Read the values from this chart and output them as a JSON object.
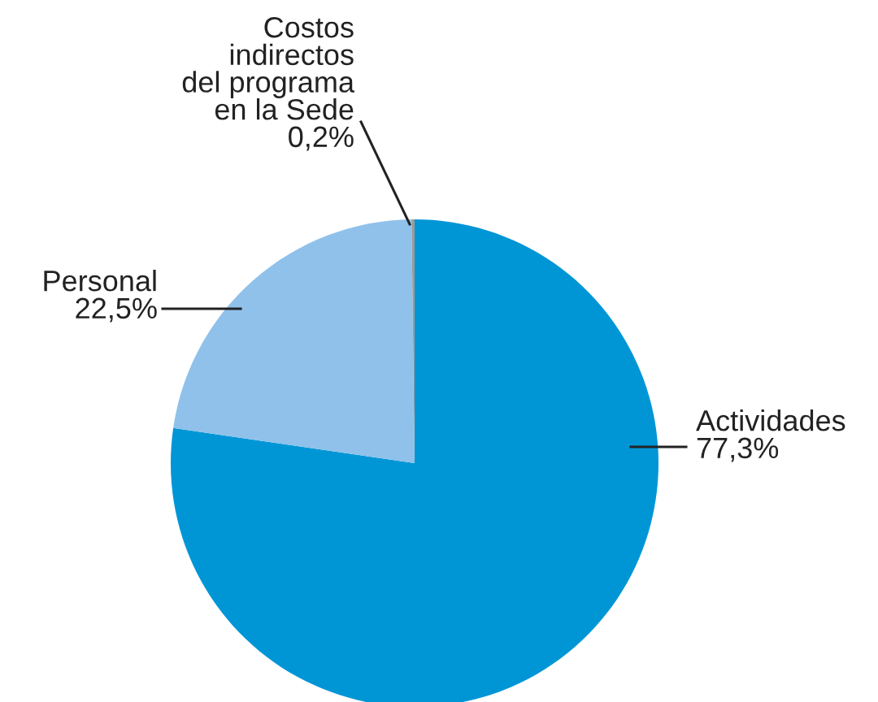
{
  "chart_data": {
    "type": "pie",
    "categories": [
      "Actividades",
      "Personal",
      "Costos\nindirectos\ndel programa\nen la Sede"
    ],
    "values": [
      77.3,
      22.5,
      0.2
    ],
    "value_labels": [
      "77,3%",
      "22,5%",
      "0,2%"
    ],
    "colors": [
      "#0096d6",
      "#8fc1ea",
      "#9a9a9a"
    ],
    "legend": false
  }
}
